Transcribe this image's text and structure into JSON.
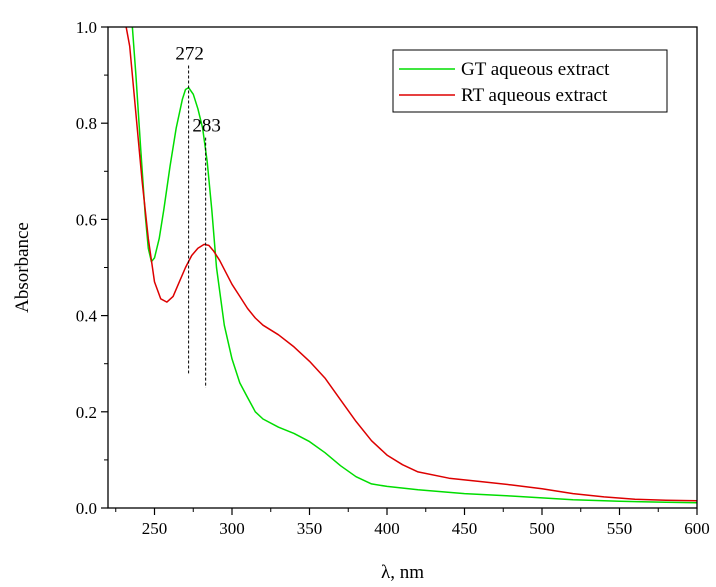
{
  "chart_data": {
    "type": "line",
    "xlabel": "λ, nm",
    "ylabel": "Absorbance",
    "xlim": [
      220,
      600
    ],
    "ylim": [
      0,
      1.0
    ],
    "xticks": [
      250,
      300,
      350,
      400,
      450,
      500,
      550,
      600
    ],
    "yticks": [
      0.0,
      0.2,
      0.4,
      0.6,
      0.8,
      1.0
    ],
    "xtick_labels": [
      "250",
      "300",
      "350",
      "400",
      "450",
      "500",
      "550",
      "600"
    ],
    "ytick_labels": [
      "0.0",
      "0.2",
      "0.4",
      "0.6",
      "0.8",
      "1.0"
    ],
    "grid": false,
    "legend_position": "top-right",
    "series": [
      {
        "name": "GT aqueous extract",
        "color": "#00dd00",
        "points": [
          [
            235,
            1.03
          ],
          [
            238,
            0.9
          ],
          [
            241,
            0.75
          ],
          [
            244,
            0.61
          ],
          [
            246,
            0.54
          ],
          [
            248,
            0.512
          ],
          [
            250,
            0.52
          ],
          [
            253,
            0.56
          ],
          [
            256,
            0.62
          ],
          [
            260,
            0.71
          ],
          [
            264,
            0.79
          ],
          [
            268,
            0.85
          ],
          [
            270,
            0.87
          ],
          [
            272,
            0.874
          ],
          [
            275,
            0.86
          ],
          [
            278,
            0.83
          ],
          [
            281,
            0.79
          ],
          [
            284,
            0.72
          ],
          [
            287,
            0.62
          ],
          [
            290,
            0.5
          ],
          [
            295,
            0.38
          ],
          [
            300,
            0.31
          ],
          [
            305,
            0.26
          ],
          [
            310,
            0.23
          ],
          [
            315,
            0.2
          ],
          [
            320,
            0.185
          ],
          [
            330,
            0.168
          ],
          [
            340,
            0.155
          ],
          [
            350,
            0.138
          ],
          [
            360,
            0.115
          ],
          [
            370,
            0.088
          ],
          [
            380,
            0.065
          ],
          [
            390,
            0.05
          ],
          [
            400,
            0.045
          ],
          [
            420,
            0.038
          ],
          [
            450,
            0.03
          ],
          [
            480,
            0.025
          ],
          [
            500,
            0.021
          ],
          [
            520,
            0.017
          ],
          [
            550,
            0.014
          ],
          [
            580,
            0.012
          ],
          [
            600,
            0.011
          ]
        ]
      },
      {
        "name": "RT aqueous extract",
        "color": "#dd0000",
        "points": [
          [
            230,
            1.03
          ],
          [
            234,
            0.96
          ],
          [
            238,
            0.82
          ],
          [
            242,
            0.68
          ],
          [
            246,
            0.56
          ],
          [
            250,
            0.47
          ],
          [
            254,
            0.435
          ],
          [
            258,
            0.428
          ],
          [
            262,
            0.44
          ],
          [
            266,
            0.47
          ],
          [
            270,
            0.5
          ],
          [
            274,
            0.525
          ],
          [
            278,
            0.54
          ],
          [
            282,
            0.548
          ],
          [
            285,
            0.546
          ],
          [
            288,
            0.535
          ],
          [
            292,
            0.515
          ],
          [
            296,
            0.49
          ],
          [
            300,
            0.465
          ],
          [
            305,
            0.44
          ],
          [
            310,
            0.415
          ],
          [
            315,
            0.395
          ],
          [
            320,
            0.38
          ],
          [
            330,
            0.36
          ],
          [
            340,
            0.335
          ],
          [
            350,
            0.305
          ],
          [
            360,
            0.27
          ],
          [
            370,
            0.225
          ],
          [
            380,
            0.18
          ],
          [
            390,
            0.14
          ],
          [
            400,
            0.11
          ],
          [
            410,
            0.09
          ],
          [
            420,
            0.075
          ],
          [
            440,
            0.062
          ],
          [
            460,
            0.055
          ],
          [
            480,
            0.048
          ],
          [
            500,
            0.04
          ],
          [
            520,
            0.03
          ],
          [
            540,
            0.023
          ],
          [
            560,
            0.018
          ],
          [
            580,
            0.016
          ],
          [
            600,
            0.015
          ]
        ]
      }
    ],
    "annotations": [
      {
        "label": "272",
        "x": 272,
        "y_top": 0.92,
        "y_bottom": 0.28
      },
      {
        "label": "283",
        "x": 283,
        "y_top": 0.77,
        "y_bottom": 0.25
      }
    ]
  }
}
